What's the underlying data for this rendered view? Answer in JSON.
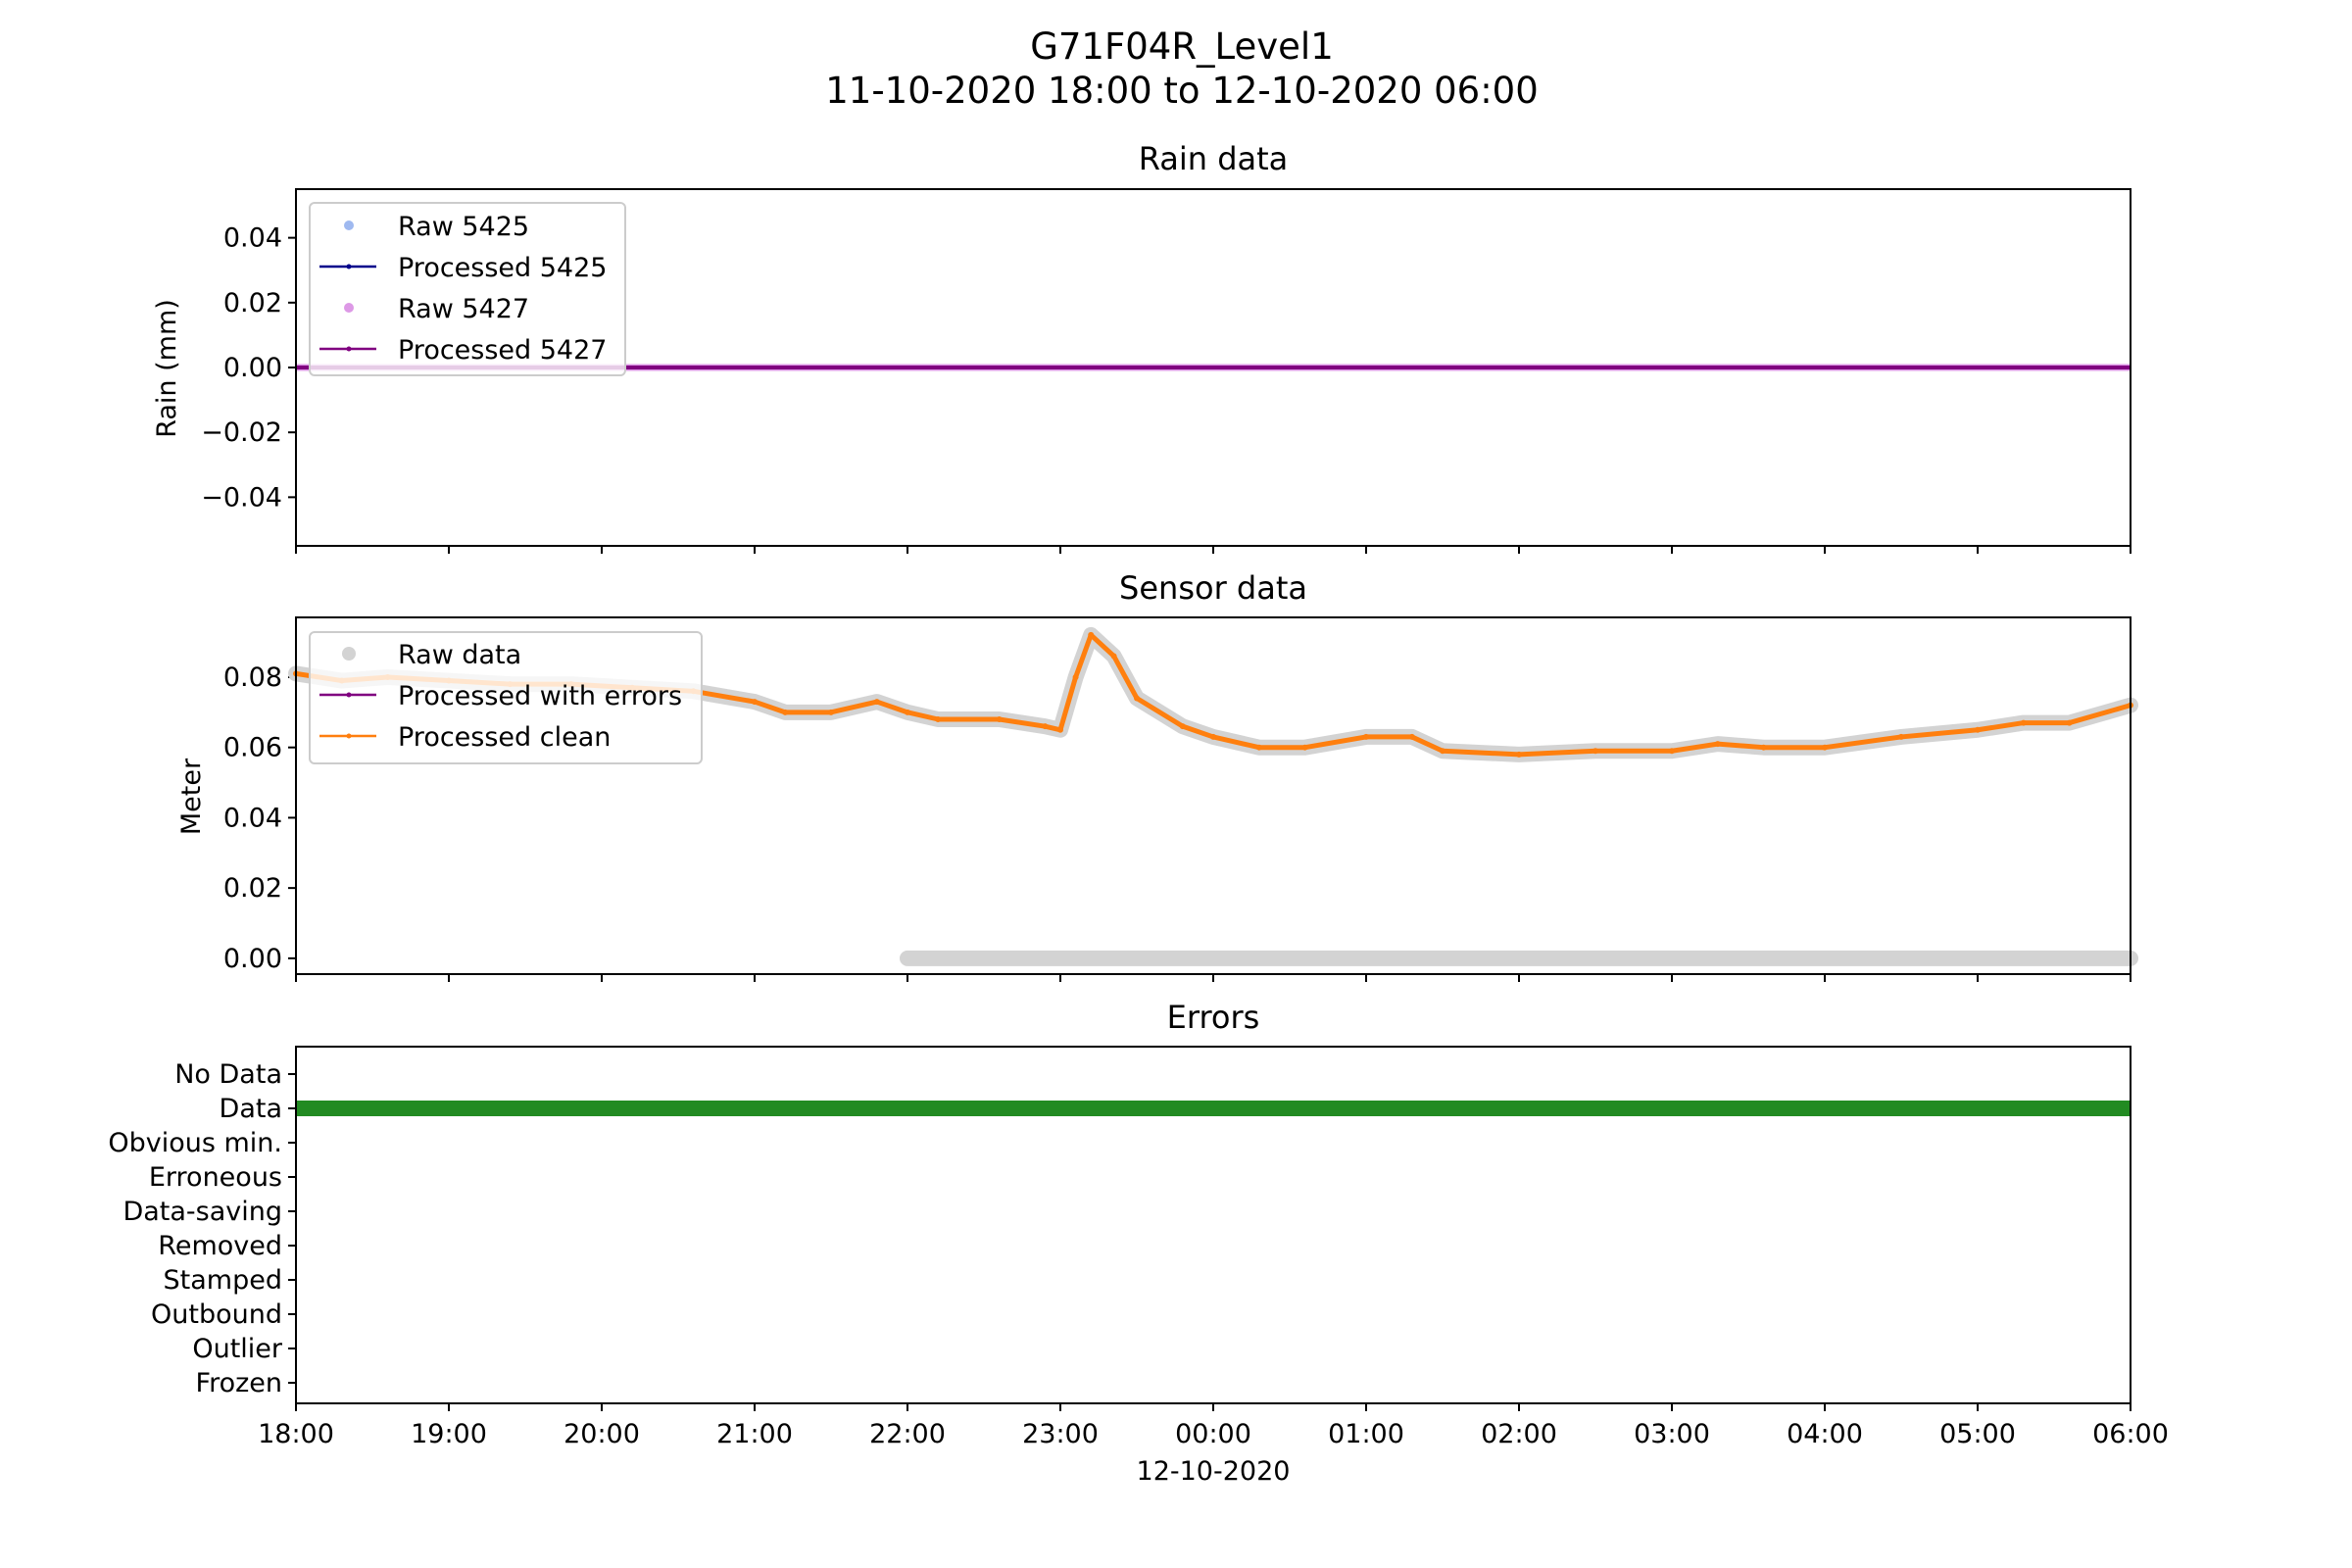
{
  "figure": {
    "title": "G71F04R_Level1",
    "subtitle": "11-10-2020 18:00 to 12-10-2020 06:00"
  },
  "x_axis": {
    "ticks": [
      "18:00",
      "19:00",
      "20:00",
      "21:00",
      "22:00",
      "23:00",
      "00:00",
      "01:00",
      "02:00",
      "03:00",
      "04:00",
      "05:00",
      "06:00"
    ],
    "date_label": "12-10-2020",
    "range_hours": [
      18,
      30
    ]
  },
  "colors": {
    "raw_5425": "#9fb9f0",
    "processed_5425": "#00008b",
    "raw_5427": "#dd99e6",
    "processed_5427": "#800080",
    "raw_sensor": "#d3d3d3",
    "processed_errors": "#800080",
    "processed_clean": "#ff7f0e",
    "data_bar": "#228b22"
  },
  "chart_data": [
    {
      "type": "line",
      "title": "Rain data",
      "ylabel": "Rain (mm)",
      "ylim": [
        -0.055,
        0.055
      ],
      "yticks": [
        "0.04",
        "0.02",
        "0.00",
        "−0.02",
        "−0.04"
      ],
      "legend_location": "upper-left",
      "series": [
        {
          "name": "Raw 5425",
          "style": "markers",
          "x": [
            18,
            30
          ],
          "y": [
            0,
            0
          ]
        },
        {
          "name": "Processed 5425",
          "style": "line",
          "x": [
            18,
            30
          ],
          "y": [
            0,
            0
          ]
        },
        {
          "name": "Raw 5427",
          "style": "markers",
          "x": [
            18,
            30
          ],
          "y": [
            0,
            0
          ]
        },
        {
          "name": "Processed 5427",
          "style": "line",
          "x": [
            18,
            30
          ],
          "y": [
            0,
            0
          ]
        }
      ]
    },
    {
      "type": "line",
      "title": "Sensor data",
      "ylabel": "Meter",
      "ylim": [
        -0.0045,
        0.097
      ],
      "yticks": [
        "0.08",
        "0.06",
        "0.04",
        "0.02",
        "0.00"
      ],
      "legend_location": "upper-left",
      "series": [
        {
          "name": "Raw data",
          "style": "markers",
          "x": [
            18.0,
            18.3,
            18.6,
            19.0,
            19.4,
            19.8,
            20.2,
            20.6,
            21.0,
            21.2,
            21.5,
            21.8,
            22.0,
            22.2,
            22.6,
            22.9,
            23.0,
            23.1,
            23.2,
            23.35,
            23.5,
            23.8,
            24.0,
            24.3,
            24.6,
            25.0,
            25.3,
            25.5,
            26.0,
            26.5,
            27.0,
            27.3,
            27.6,
            28.0,
            28.5,
            29.0,
            29.3,
            29.6,
            30.0
          ],
          "y": [
            0.081,
            0.079,
            0.08,
            0.079,
            0.078,
            0.078,
            0.077,
            0.076,
            0.073,
            0.07,
            0.07,
            0.073,
            0.07,
            0.068,
            0.068,
            0.066,
            0.065,
            0.08,
            0.092,
            0.086,
            0.074,
            0.066,
            0.063,
            0.06,
            0.06,
            0.063,
            0.063,
            0.059,
            0.058,
            0.059,
            0.059,
            0.061,
            0.06,
            0.06,
            0.063,
            0.065,
            0.067,
            0.067,
            0.072
          ]
        },
        {
          "name": "Raw data",
          "style": "markers",
          "x": [
            22.0,
            30.0
          ],
          "y": [
            0.0,
            0.0
          ]
        },
        {
          "name": "Processed with errors",
          "style": "line",
          "x": [],
          "y": []
        },
        {
          "name": "Processed clean",
          "style": "line",
          "x": [
            18.0,
            18.3,
            18.6,
            19.0,
            19.4,
            19.8,
            20.2,
            20.6,
            21.0,
            21.2,
            21.5,
            21.8,
            22.0,
            22.2,
            22.6,
            22.9,
            23.0,
            23.1,
            23.2,
            23.35,
            23.5,
            23.8,
            24.0,
            24.3,
            24.6,
            25.0,
            25.3,
            25.5,
            26.0,
            26.5,
            27.0,
            27.3,
            27.6,
            28.0,
            28.5,
            29.0,
            29.3,
            29.6,
            30.0
          ],
          "y": [
            0.081,
            0.079,
            0.08,
            0.079,
            0.078,
            0.078,
            0.077,
            0.076,
            0.073,
            0.07,
            0.07,
            0.073,
            0.07,
            0.068,
            0.068,
            0.066,
            0.065,
            0.08,
            0.092,
            0.086,
            0.074,
            0.066,
            0.063,
            0.06,
            0.06,
            0.063,
            0.063,
            0.059,
            0.058,
            0.059,
            0.059,
            0.061,
            0.06,
            0.06,
            0.063,
            0.065,
            0.067,
            0.067,
            0.072
          ]
        }
      ]
    },
    {
      "type": "bar",
      "title": "Errors",
      "categories": [
        "No Data",
        "Data",
        "Obvious min.",
        "Erroneous",
        "Data-saving",
        "Removed",
        "Stamped",
        "Outbound",
        "Outlier",
        "Frozen"
      ],
      "series": [
        {
          "category": "Data",
          "x": [
            18,
            30
          ]
        }
      ]
    }
  ]
}
